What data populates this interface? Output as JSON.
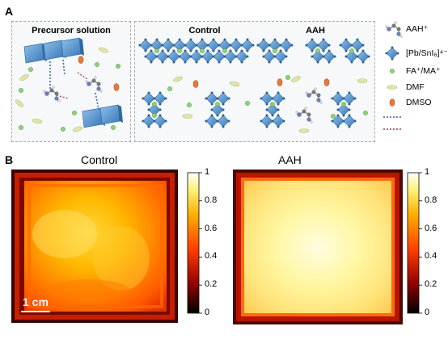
{
  "figure": {
    "panel_a": {
      "letter": "A",
      "precursor_title": "Precursor solution",
      "control_title": "Control",
      "aah_title": "AAH",
      "legend": [
        {
          "icon": "aah-molecule-icon",
          "label": "AAH⁺"
        },
        {
          "icon": "octahedron-icon",
          "label": "[Pb/SnI₆]⁴⁻"
        },
        {
          "icon": "green-circle-icon",
          "label": "FA⁺/MA⁺"
        },
        {
          "icon": "dmf-ellipse-icon",
          "label": "DMF"
        },
        {
          "icon": "dmso-ellipse-icon",
          "label": "DMSO"
        },
        {
          "icon": "blue-dotted-line-icon",
          "label": ""
        },
        {
          "icon": "red-dotted-line-icon",
          "label": ""
        }
      ],
      "colors": {
        "octahedron": "#4f8fcf",
        "cation": "#8fd27a",
        "dmf": "#dfe6a6",
        "dmso": "#e67a3a",
        "blue_bond": "#3b5fa8",
        "red_bond": "#c0304a"
      }
    },
    "panel_b": {
      "letter": "B",
      "control_title": "Control",
      "aah_title": "AAH",
      "scale_bar_label": "1 cm",
      "colorbar_ticks": [
        "1",
        "0.8",
        "0.6",
        "0.4",
        "0.2",
        "0"
      ],
      "colormap": [
        "#000000",
        "#8b0000",
        "#ff3b00",
        "#ffae00",
        "#fff27a",
        "#ffffff"
      ]
    }
  }
}
